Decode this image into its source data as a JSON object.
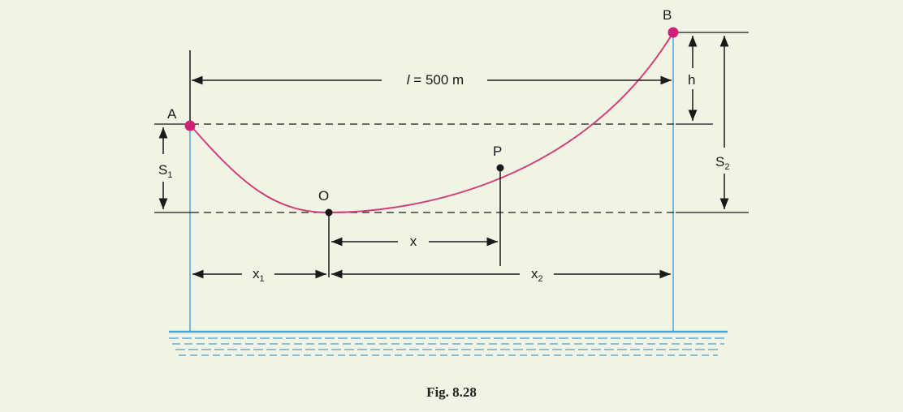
{
  "figure": {
    "caption": "Fig. 8.28",
    "span_label": "l = 500 m",
    "span_label_italic": "l",
    "span_label_rest": " = 500 m",
    "points": {
      "A": "A",
      "B": "B",
      "O": "O",
      "P": "P"
    },
    "dimensions": {
      "h": "h",
      "S1": "S",
      "S1_sub": "1",
      "S2": "S",
      "S2_sub": "2",
      "x": "x",
      "x1": "x",
      "x1_sub": "1",
      "x2": "x",
      "x2_sub": "2"
    }
  },
  "colors": {
    "background": "#f1f3e4",
    "conductor": "#d0407a",
    "support": "#7ab8d8",
    "water": "#4aa3cc",
    "point_marker": "#d0207a",
    "line": "#1a1a1a"
  }
}
